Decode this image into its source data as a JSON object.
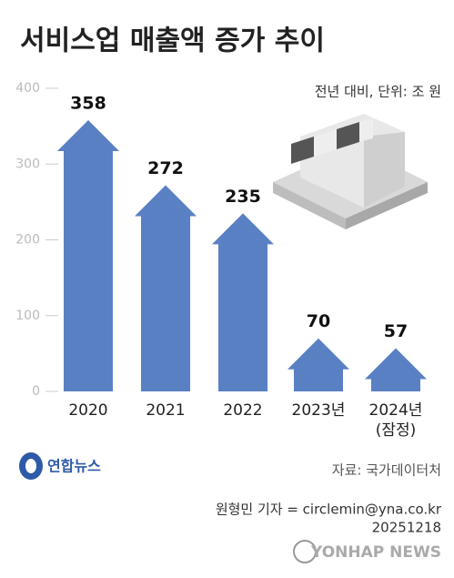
{
  "chart_data": {
    "type": "arrow-bar",
    "title": "서비스업 매출액 증가 추이",
    "subtitle": "전년 대비, 단위: 조 원",
    "categories": [
      "2020",
      "2021",
      "2022",
      "2023년",
      "2024년\n(잠정)"
    ],
    "values": [
      358,
      272,
      235,
      70,
      57
    ],
    "color": "#5a80c4",
    "ylim": [
      0,
      400
    ],
    "yticks": [
      0,
      100,
      200,
      300,
      400
    ]
  },
  "footer": {
    "logo": "연합뉴스",
    "source": "자료: 국가데이터처",
    "credit": "원형민 기자 = circlemin@yna.co.kr",
    "date": "20251218",
    "watermark": "YONHAP NEWS"
  }
}
